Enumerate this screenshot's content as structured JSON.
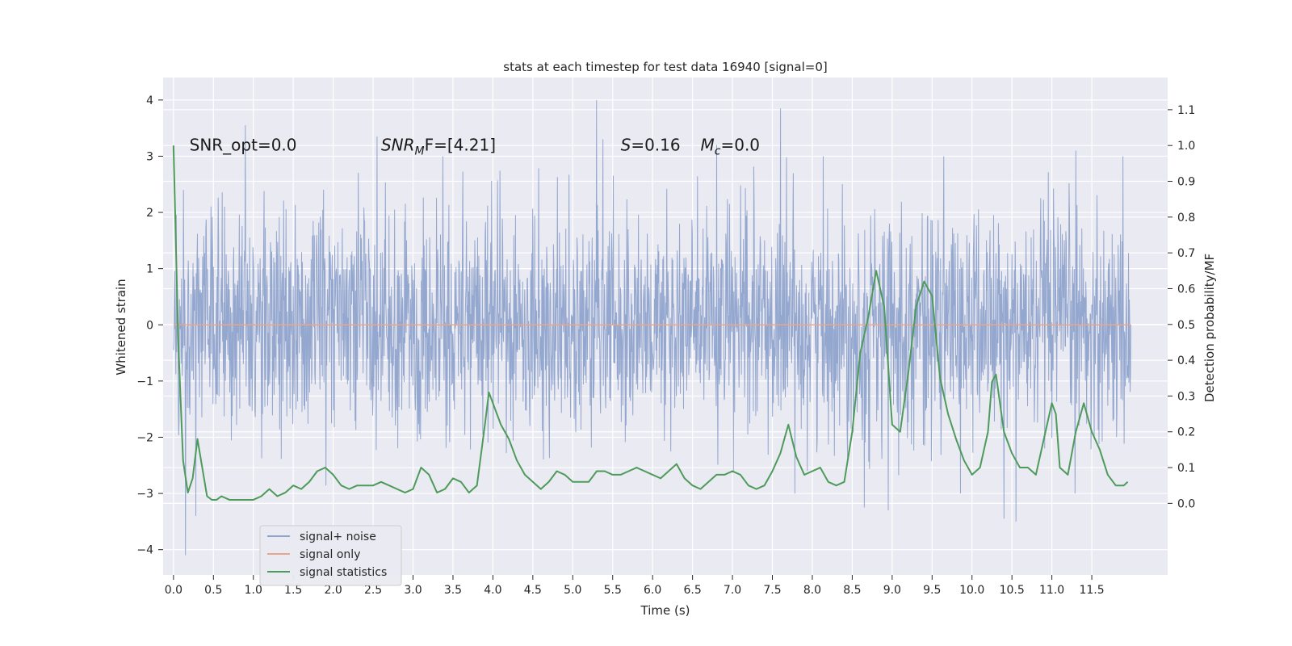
{
  "chart_data": {
    "type": "line",
    "title": "stats at each timestep for test data 16940 [signal=0]",
    "xlabel": "Time (s)",
    "ylabel": "Whitened strain",
    "ylabel_right": "Detection probability/MF",
    "xlim": [
      -0.13,
      12.45
    ],
    "ylim": [
      -4.45,
      4.4
    ],
    "ylim_right": [
      -0.2,
      1.19
    ],
    "x_ticks": [
      0.0,
      0.5,
      1.0,
      1.5,
      2.0,
      2.5,
      3.0,
      3.5,
      4.0,
      4.5,
      5.0,
      5.5,
      6.0,
      6.5,
      7.0,
      7.5,
      8.0,
      8.5,
      9.0,
      9.5,
      10.0,
      10.5,
      11.0,
      11.5
    ],
    "x_tick_labels": [
      "0.0",
      "0.5",
      "1.0",
      "1.5",
      "2.0",
      "2.5",
      "3.0",
      "3.5",
      "4.0",
      "4.5",
      "5.0",
      "5.5",
      "6.0",
      "6.5",
      "7.0",
      "7.5",
      "8.0",
      "8.5",
      "9.0",
      "9.5",
      "10.0",
      "10.5",
      "11.0",
      "11.5"
    ],
    "y_ticks": [
      -4,
      -3,
      -2,
      -1,
      0,
      1,
      2,
      3,
      4
    ],
    "y_tick_labels": [
      "−4",
      "−3",
      "−2",
      "−1",
      "0",
      "1",
      "2",
      "3",
      "4"
    ],
    "y_right_ticks": [
      0.0,
      0.1,
      0.2,
      0.3,
      0.4,
      0.5,
      0.6,
      0.7,
      0.8,
      0.9,
      1.0,
      1.1
    ],
    "y_right_tick_labels": [
      "0.0",
      "0.1",
      "0.2",
      "0.3",
      "0.4",
      "0.5",
      "0.6",
      "0.7",
      "0.8",
      "0.9",
      "1.0",
      "1.1"
    ],
    "grid": true,
    "legend_position": "lower-left",
    "annotations": [
      {
        "text": "SNR_opt=0.0",
        "x": 0.2,
        "y": 3.2
      },
      {
        "text": "SNR",
        "sub": "M",
        "suffix": "F=[4.21]",
        "x": 2.6,
        "y": 3.2
      },
      {
        "text": "S",
        "suffix": "=0.16",
        "x": 5.6,
        "y": 3.2
      },
      {
        "text": "M",
        "sub": "c",
        "suffix": "=0.0",
        "x": 6.6,
        "y": 3.2
      }
    ],
    "series": [
      {
        "name": "signal+ noise",
        "color": "#8fa3cc",
        "axis": "left",
        "t_start": 0.0,
        "t_end": 11.99,
        "noise_sigma": 1.0,
        "extremes": [
          {
            "x": 0.15,
            "y": -4.1
          },
          {
            "x": 0.28,
            "y": -3.4
          },
          {
            "x": 0.9,
            "y": 3.55
          },
          {
            "x": 2.55,
            "y": 3.35
          },
          {
            "x": 5.3,
            "y": 4.0
          },
          {
            "x": 5.38,
            "y": 3.3
          },
          {
            "x": 7.6,
            "y": 3.85
          },
          {
            "x": 6.8,
            "y": 3.2
          },
          {
            "x": 8.65,
            "y": -3.25
          },
          {
            "x": 8.95,
            "y": -3.3
          },
          {
            "x": 10.4,
            "y": -3.45
          },
          {
            "x": 10.55,
            "y": -3.5
          },
          {
            "x": 11.3,
            "y": 3.1
          }
        ]
      },
      {
        "name": "signal only",
        "color": "#e8a58a",
        "axis": "left",
        "x": [
          0.0,
          11.99
        ],
        "y": [
          0.0,
          0.0
        ]
      },
      {
        "name": "signal statistics",
        "color": "#4e9a5b",
        "axis": "right",
        "x": [
          0.0,
          0.06,
          0.12,
          0.18,
          0.24,
          0.3,
          0.36,
          0.42,
          0.48,
          0.54,
          0.6,
          0.7,
          0.8,
          0.9,
          1.0,
          1.1,
          1.2,
          1.3,
          1.4,
          1.5,
          1.6,
          1.7,
          1.8,
          1.9,
          2.0,
          2.1,
          2.2,
          2.3,
          2.4,
          2.5,
          2.6,
          2.7,
          2.8,
          2.9,
          3.0,
          3.1,
          3.2,
          3.3,
          3.4,
          3.5,
          3.6,
          3.7,
          3.8,
          3.9,
          3.95,
          4.0,
          4.1,
          4.2,
          4.3,
          4.4,
          4.5,
          4.6,
          4.7,
          4.8,
          4.9,
          5.0,
          5.1,
          5.2,
          5.3,
          5.4,
          5.5,
          5.6,
          5.7,
          5.8,
          5.9,
          6.0,
          6.1,
          6.2,
          6.3,
          6.4,
          6.5,
          6.6,
          6.7,
          6.8,
          6.9,
          7.0,
          7.1,
          7.2,
          7.3,
          7.4,
          7.5,
          7.6,
          7.7,
          7.8,
          7.9,
          8.0,
          8.1,
          8.2,
          8.3,
          8.4,
          8.5,
          8.6,
          8.7,
          8.8,
          8.9,
          9.0,
          9.1,
          9.2,
          9.3,
          9.4,
          9.5,
          9.6,
          9.7,
          9.8,
          9.9,
          10.0,
          10.1,
          10.2,
          10.25,
          10.3,
          10.4,
          10.5,
          10.6,
          10.7,
          10.8,
          10.9,
          11.0,
          11.05,
          11.1,
          11.2,
          11.3,
          11.4,
          11.5,
          11.6,
          11.7,
          11.8,
          11.9,
          11.95
        ],
        "y": [
          1.0,
          0.45,
          0.12,
          0.03,
          0.07,
          0.18,
          0.1,
          0.02,
          0.01,
          0.01,
          0.02,
          0.01,
          0.01,
          0.01,
          0.01,
          0.02,
          0.04,
          0.02,
          0.03,
          0.05,
          0.04,
          0.06,
          0.09,
          0.1,
          0.08,
          0.05,
          0.04,
          0.05,
          0.05,
          0.05,
          0.06,
          0.05,
          0.04,
          0.03,
          0.04,
          0.1,
          0.08,
          0.03,
          0.04,
          0.07,
          0.06,
          0.03,
          0.05,
          0.22,
          0.31,
          0.28,
          0.22,
          0.18,
          0.12,
          0.08,
          0.06,
          0.04,
          0.06,
          0.09,
          0.08,
          0.06,
          0.06,
          0.06,
          0.09,
          0.09,
          0.08,
          0.08,
          0.09,
          0.1,
          0.09,
          0.08,
          0.07,
          0.09,
          0.11,
          0.07,
          0.05,
          0.04,
          0.06,
          0.08,
          0.08,
          0.09,
          0.08,
          0.05,
          0.04,
          0.05,
          0.09,
          0.14,
          0.22,
          0.13,
          0.08,
          0.09,
          0.1,
          0.06,
          0.05,
          0.06,
          0.2,
          0.42,
          0.52,
          0.65,
          0.55,
          0.22,
          0.2,
          0.36,
          0.55,
          0.62,
          0.58,
          0.35,
          0.25,
          0.18,
          0.12,
          0.08,
          0.1,
          0.2,
          0.34,
          0.36,
          0.2,
          0.14,
          0.1,
          0.1,
          0.08,
          0.18,
          0.28,
          0.25,
          0.1,
          0.08,
          0.2,
          0.28,
          0.2,
          0.15,
          0.08,
          0.05,
          0.05,
          0.06
        ]
      }
    ]
  }
}
